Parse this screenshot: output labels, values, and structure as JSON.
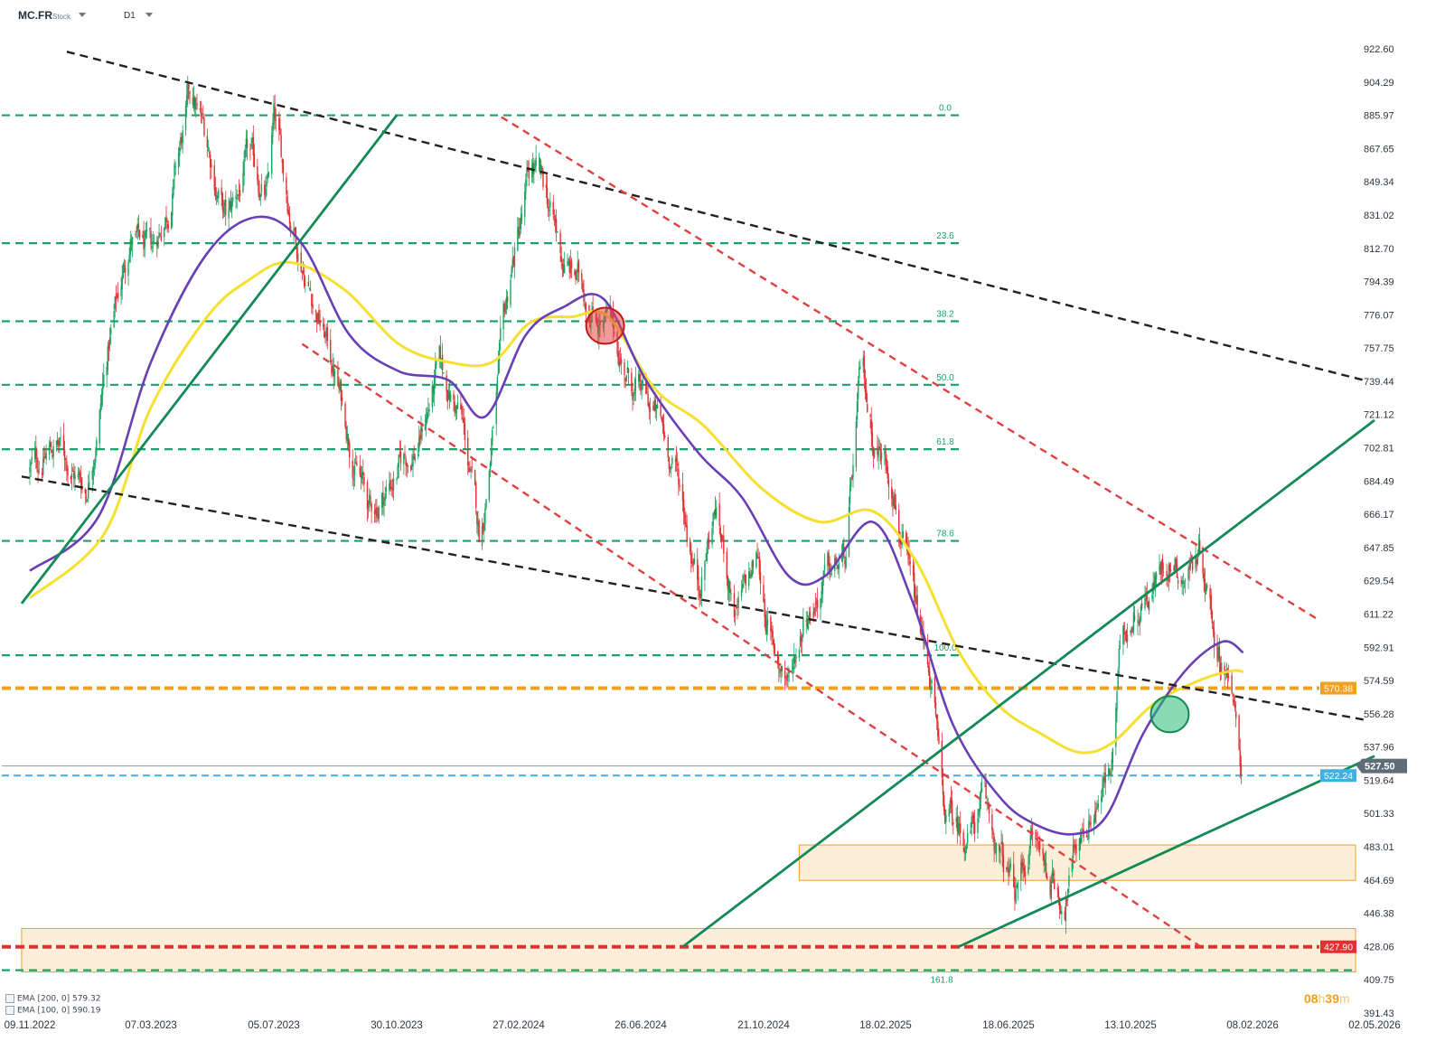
{
  "header": {
    "symbol": "MC.FR",
    "symbol_type": "Stock",
    "timeframe": "D1"
  },
  "legend": [
    {
      "label": "EMA [200, 0]  579.32"
    },
    {
      "label": "EMA [100, 0]  590.19"
    }
  ],
  "timer": {
    "hours": "08",
    "h": "h",
    "minutes": "39",
    "m": "m"
  },
  "colors": {
    "candle_up": "#1aa260",
    "candle_down": "#e03030",
    "ema200": "#f5e030",
    "ema100": "#6a3fb5",
    "fib_line": "#1aa06a",
    "trend_black": "#222222",
    "trend_red": "#e04040",
    "trend_green": "#138a55",
    "support_orange": "#f0a020",
    "support_red": "#e03030",
    "support_blue": "#40b0e0",
    "zone_fill": "#fdebd3",
    "zone_border": "#f0a020"
  },
  "chart_data": {
    "type": "candlestick",
    "symbol": "MC.FR",
    "timeframe": "D1",
    "y_axis": {
      "range": [
        391.43,
        931.0
      ],
      "ticks": [
        "922.60",
        "904.29",
        "885.97",
        "867.65",
        "849.34",
        "831.02",
        "812.70",
        "794.39",
        "776.07",
        "757.75",
        "739.44",
        "721.12",
        "702.81",
        "684.49",
        "666.17",
        "647.85",
        "629.54",
        "611.22",
        "592.91",
        "574.59",
        "556.28",
        "537.96",
        "519.64",
        "501.33",
        "483.01",
        "464.69",
        "446.38",
        "428.06",
        "409.75",
        "391.43"
      ]
    },
    "x_axis": {
      "ticks": [
        "09.11.2022",
        "07.03.2023",
        "05.07.2023",
        "30.10.2023",
        "27.02.2024",
        "26.06.2024",
        "21.10.2024",
        "18.02.2025",
        "18.06.2025",
        "13.10.2025",
        "08.02.2026",
        "02.05.2026"
      ]
    },
    "price_path": [
      [
        "2022-11-09",
        690
      ],
      [
        "2022-12-05",
        705
      ],
      [
        "2023-01-03",
        680
      ],
      [
        "2023-01-25",
        760
      ],
      [
        "2023-02-15",
        820
      ],
      [
        "2023-03-07",
        805
      ],
      [
        "2023-03-25",
        840
      ],
      [
        "2023-04-15",
        895
      ],
      [
        "2023-05-01",
        870
      ],
      [
        "2023-05-20",
        825
      ],
      [
        "2023-06-10",
        860
      ],
      [
        "2023-06-28",
        840
      ],
      [
        "2023-07-05",
        880
      ],
      [
        "2023-07-20",
        835
      ],
      [
        "2023-08-05",
        800
      ],
      [
        "2023-08-25",
        760
      ],
      [
        "2023-09-15",
        710
      ],
      [
        "2023-10-05",
        665
      ],
      [
        "2023-10-30",
        690
      ],
      [
        "2023-11-20",
        705
      ],
      [
        "2023-12-10",
        745
      ],
      [
        "2024-01-01",
        720
      ],
      [
        "2024-01-20",
        650
      ],
      [
        "2024-02-05",
        730
      ],
      [
        "2024-02-20",
        800
      ],
      [
        "2024-03-10",
        855
      ],
      [
        "2024-03-25",
        840
      ],
      [
        "2024-04-10",
        805
      ],
      [
        "2024-05-01",
        790
      ],
      [
        "2024-05-25",
        770
      ],
      [
        "2024-06-15",
        740
      ],
      [
        "2024-07-10",
        720
      ],
      [
        "2024-07-30",
        690
      ],
      [
        "2024-08-20",
        630
      ],
      [
        "2024-09-05",
        670
      ],
      [
        "2024-09-25",
        610
      ],
      [
        "2024-10-15",
        640
      ],
      [
        "2024-10-30",
        590
      ],
      [
        "2024-11-15",
        575
      ],
      [
        "2024-12-01",
        615
      ],
      [
        "2024-12-20",
        630
      ],
      [
        "2025-01-10",
        640
      ],
      [
        "2025-01-25",
        745
      ],
      [
        "2025-02-05",
        710
      ],
      [
        "2025-02-25",
        690
      ],
      [
        "2025-03-15",
        620
      ],
      [
        "2025-04-05",
        570
      ],
      [
        "2025-04-15",
        500
      ],
      [
        "2025-05-05",
        490
      ],
      [
        "2025-05-25",
        505
      ],
      [
        "2025-06-10",
        475
      ],
      [
        "2025-06-25",
        455
      ],
      [
        "2025-07-10",
        490
      ],
      [
        "2025-07-25",
        470
      ],
      [
        "2025-08-10",
        455
      ],
      [
        "2025-08-25",
        490
      ],
      [
        "2025-09-10",
        510
      ],
      [
        "2025-09-25",
        525
      ],
      [
        "2025-10-05",
        600
      ],
      [
        "2025-10-20",
        620
      ],
      [
        "2025-11-05",
        630
      ],
      [
        "2025-11-20",
        645
      ],
      [
        "2025-12-05",
        635
      ],
      [
        "2025-12-20",
        650
      ],
      [
        "2026-01-05",
        595
      ],
      [
        "2026-01-15",
        585
      ],
      [
        "2026-01-25",
        535
      ],
      [
        "2026-01-28",
        527.5
      ]
    ],
    "ema100": [
      [
        "2022-11-09",
        635
      ],
      [
        "2023-01-15",
        665
      ],
      [
        "2023-03-07",
        750
      ],
      [
        "2023-05-01",
        810
      ],
      [
        "2023-06-20",
        830
      ],
      [
        "2023-08-01",
        815
      ],
      [
        "2023-09-15",
        765
      ],
      [
        "2023-11-01",
        745
      ],
      [
        "2023-12-20",
        740
      ],
      [
        "2024-01-25",
        720
      ],
      [
        "2024-03-05",
        765
      ],
      [
        "2024-04-10",
        780
      ],
      [
        "2024-05-20",
        785
      ],
      [
        "2024-07-01",
        740
      ],
      [
        "2024-08-20",
        700
      ],
      [
        "2024-10-01",
        675
      ],
      [
        "2024-11-15",
        632
      ],
      [
        "2024-12-20",
        632
      ],
      [
        "2025-02-05",
        662
      ],
      [
        "2025-03-15",
        620
      ],
      [
        "2025-04-25",
        550
      ],
      [
        "2025-06-10",
        510
      ],
      [
        "2025-07-15",
        495
      ],
      [
        "2025-08-20",
        490
      ],
      [
        "2025-09-20",
        500
      ],
      [
        "2025-10-25",
        545
      ],
      [
        "2025-12-05",
        580
      ],
      [
        "2026-01-10",
        596
      ],
      [
        "2026-01-30",
        590
      ]
    ],
    "ema200": [
      [
        "2022-11-09",
        620
      ],
      [
        "2023-01-20",
        655
      ],
      [
        "2023-03-07",
        725
      ],
      [
        "2023-05-01",
        775
      ],
      [
        "2023-06-10",
        795
      ],
      [
        "2023-07-20",
        805
      ],
      [
        "2023-09-10",
        790
      ],
      [
        "2023-11-01",
        760
      ],
      [
        "2023-12-20",
        750
      ],
      [
        "2024-02-01",
        750
      ],
      [
        "2024-03-10",
        772
      ],
      [
        "2024-04-20",
        775
      ],
      [
        "2024-05-25",
        775
      ],
      [
        "2024-07-10",
        735
      ],
      [
        "2024-08-25",
        715
      ],
      [
        "2024-10-20",
        680
      ],
      [
        "2024-12-15",
        662
      ],
      [
        "2025-02-05",
        668
      ],
      [
        "2025-03-20",
        640
      ],
      [
        "2025-05-01",
        590
      ],
      [
        "2025-06-10",
        560
      ],
      [
        "2025-07-20",
        545
      ],
      [
        "2025-08-25",
        535
      ],
      [
        "2025-09-25",
        540
      ],
      [
        "2025-11-05",
        562
      ],
      [
        "2025-12-20",
        575
      ],
      [
        "2026-01-20",
        580
      ],
      [
        "2026-01-30",
        579.32
      ]
    ],
    "fibonacci": [
      {
        "level": "0.0",
        "price": 885.97
      },
      {
        "level": "23.6",
        "price": 815.5
      },
      {
        "level": "38.2",
        "price": 772.5
      },
      {
        "level": "50.0",
        "price": 737.5
      },
      {
        "level": "61.8",
        "price": 702.0
      },
      {
        "level": "78.6",
        "price": 651.5
      },
      {
        "level": "100.0",
        "price": 588.5
      },
      {
        "level": "161.8",
        "price": 415.0
      }
    ],
    "horizontal_levels": [
      {
        "label": "570.38",
        "price": 570.38,
        "color": "orange"
      },
      {
        "label": "522.24",
        "price": 522.24,
        "color": "blue"
      },
      {
        "label": "427.90",
        "price": 427.9,
        "color": "red"
      }
    ],
    "last_price": {
      "label": "527.50",
      "price": 527.5
    },
    "zones": [
      {
        "from": "2024-11-25",
        "to": "2026-05-02",
        "low": 464.5,
        "high": 484.0
      },
      {
        "from": "2022-11-01",
        "to": "2026-05-02",
        "low": 414.0,
        "high": 438.0
      }
    ],
    "trendlines": [
      {
        "color": "black",
        "style": "dashed",
        "p1": [
          "2022-12-15",
          921
        ],
        "p2": [
          "2026-04-25",
          740
        ]
      },
      {
        "color": "black",
        "style": "dashed",
        "p1": [
          "2022-11-01",
          687
        ],
        "p2": [
          "2026-04-25",
          553
        ]
      },
      {
        "color": "red",
        "style": "dashed",
        "p1": [
          "2024-02-10",
          885
        ],
        "p2": [
          "2026-03-25",
          608
        ]
      },
      {
        "color": "red",
        "style": "dashed",
        "p1": [
          "2023-08-01",
          760
        ],
        "p2": [
          "2025-12-20",
          427.9
        ]
      },
      {
        "color": "green",
        "style": "solid",
        "p1": [
          "2022-11-01",
          617
        ],
        "p2": [
          "2023-10-30",
          886
        ]
      },
      {
        "color": "green",
        "style": "solid",
        "p1": [
          "2024-08-05",
          427.9
        ],
        "p2": [
          "2026-05-02",
          718
        ]
      },
      {
        "color": "green",
        "style": "solid",
        "p1": [
          "2025-04-30",
          427.9
        ],
        "p2": [
          "2026-05-02",
          533
        ]
      }
    ],
    "markers": [
      {
        "type": "bearish-cross",
        "date": "2024-05-22",
        "price": 770,
        "color": "red"
      },
      {
        "type": "bullish-cross",
        "date": "2025-11-20",
        "price": 556,
        "color": "green"
      }
    ],
    "grid": false,
    "legend_position": "bottom-left"
  }
}
